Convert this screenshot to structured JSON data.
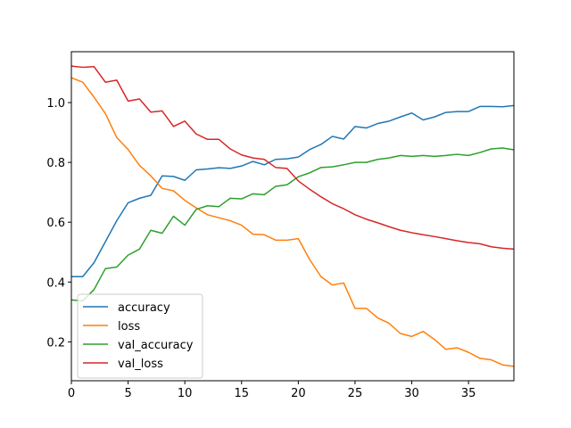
{
  "chart_data": {
    "type": "line",
    "title": "",
    "xlabel": "",
    "ylabel": "",
    "xlim": [
      0,
      39
    ],
    "ylim": [
      0.07,
      1.17
    ],
    "xticks": [
      "0",
      "5",
      "10",
      "15",
      "20",
      "25",
      "30",
      "35"
    ],
    "yticks": [
      "0.2",
      "0.4",
      "0.6",
      "0.8",
      "1.0"
    ],
    "grid": false,
    "legend_position": "lower-left",
    "x": [
      0,
      1,
      2,
      3,
      4,
      5,
      6,
      7,
      8,
      9,
      10,
      11,
      12,
      13,
      14,
      15,
      16,
      17,
      18,
      19,
      20,
      21,
      22,
      23,
      24,
      25,
      26,
      27,
      28,
      29,
      30,
      31,
      32,
      33,
      34,
      35,
      36,
      37,
      38,
      39
    ],
    "series": [
      {
        "name": "accuracy",
        "color": "#1f77b4",
        "values": [
          0.418,
          0.418,
          0.465,
          0.535,
          0.605,
          0.665,
          0.68,
          0.69,
          0.755,
          0.753,
          0.74,
          0.775,
          0.778,
          0.782,
          0.78,
          0.788,
          0.803,
          0.792,
          0.81,
          0.812,
          0.818,
          0.843,
          0.86,
          0.887,
          0.878,
          0.92,
          0.915,
          0.93,
          0.938,
          0.952,
          0.965,
          0.942,
          0.952,
          0.967,
          0.97,
          0.97,
          0.987,
          0.987,
          0.986,
          0.99
        ]
      },
      {
        "name": "loss",
        "color": "#ff7f0e",
        "values": [
          1.083,
          1.068,
          1.018,
          0.963,
          0.883,
          0.843,
          0.79,
          0.755,
          0.713,
          0.705,
          0.673,
          0.648,
          0.625,
          0.615,
          0.605,
          0.59,
          0.56,
          0.558,
          0.54,
          0.54,
          0.545,
          0.475,
          0.418,
          0.39,
          0.397,
          0.312,
          0.312,
          0.28,
          0.262,
          0.228,
          0.218,
          0.235,
          0.208,
          0.175,
          0.18,
          0.165,
          0.145,
          0.14,
          0.123,
          0.118
        ]
      },
      {
        "name": "val_accuracy",
        "color": "#2ca02c",
        "values": [
          0.34,
          0.337,
          0.375,
          0.445,
          0.45,
          0.49,
          0.51,
          0.573,
          0.563,
          0.62,
          0.59,
          0.643,
          0.655,
          0.652,
          0.68,
          0.678,
          0.695,
          0.692,
          0.72,
          0.725,
          0.752,
          0.765,
          0.783,
          0.785,
          0.792,
          0.8,
          0.8,
          0.81,
          0.815,
          0.823,
          0.82,
          0.823,
          0.82,
          0.823,
          0.827,
          0.823,
          0.833,
          0.845,
          0.848,
          0.842
        ]
      },
      {
        "name": "val_loss",
        "color": "#d62728",
        "values": [
          1.122,
          1.118,
          1.12,
          1.068,
          1.075,
          1.005,
          1.012,
          0.968,
          0.972,
          0.92,
          0.938,
          0.895,
          0.877,
          0.877,
          0.845,
          0.825,
          0.815,
          0.81,
          0.783,
          0.78,
          0.738,
          0.71,
          0.685,
          0.662,
          0.645,
          0.625,
          0.61,
          0.598,
          0.585,
          0.573,
          0.565,
          0.558,
          0.552,
          0.545,
          0.538,
          0.532,
          0.528,
          0.518,
          0.513,
          0.51
        ]
      }
    ]
  }
}
